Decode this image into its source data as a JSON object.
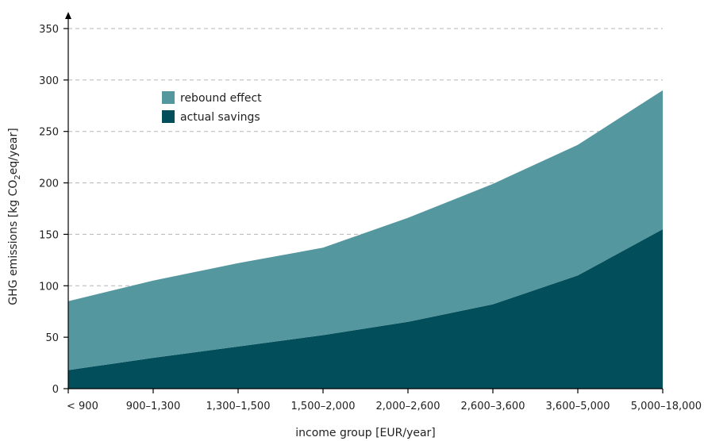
{
  "chart_data": {
    "type": "area",
    "stacked": true,
    "categories": [
      "< 900",
      "900–1,300",
      "1,300–1,500",
      "1,500–2,000",
      "2,000–2,600",
      "2,600–3,600",
      "3,600–5,000",
      "5,000–18,000"
    ],
    "series": [
      {
        "name": "actual savings",
        "values": [
          18,
          30,
          41,
          52,
          65,
          82,
          110,
          155
        ],
        "color": "#034e5b"
      },
      {
        "name": "rebound effect",
        "values": [
          67,
          75,
          81,
          85,
          101,
          117,
          127,
          135
        ],
        "color": "#55979f"
      }
    ],
    "title": "",
    "xlabel": "income group [EUR/year]",
    "ylabel": {
      "prefix": "GHG emissions [kg CO",
      "subscript": "2",
      "suffix": "eq/year]"
    },
    "ylim": [
      0,
      350
    ],
    "yticks": [
      0,
      50,
      100,
      150,
      200,
      250,
      300,
      350
    ],
    "grid": true,
    "legend": {
      "placement": "top-left",
      "entries": [
        {
          "label": "rebound effect",
          "color": "#55979f"
        },
        {
          "label": "actual savings",
          "color": "#034e5b"
        }
      ]
    }
  }
}
